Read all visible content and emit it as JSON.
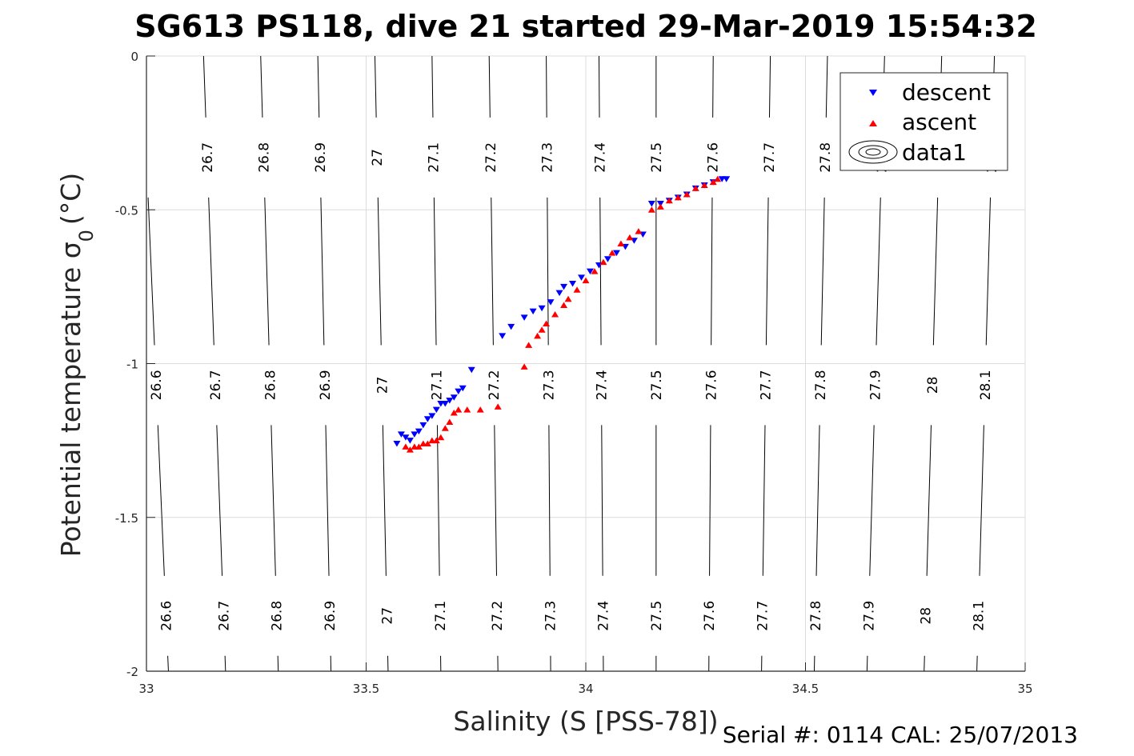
{
  "chart_data": {
    "type": "scatter",
    "title": "SG613 PS118, dive 21 started 29-Mar-2019 15:54:32",
    "xlabel": "Salinity (S [PSS-78])",
    "ylabel": "Potential temperature σ",
    "ylabel_sub": "0",
    "ylabel_unit": "(°C)",
    "xlim": [
      33,
      35
    ],
    "ylim": [
      -2,
      0
    ],
    "grid": true,
    "xticks": [
      33,
      33.5,
      34,
      34.5,
      35
    ],
    "xtick_labels": [
      "33",
      "33.5",
      "34",
      "34.5",
      "35"
    ],
    "yticks": [
      0,
      -0.5,
      -1,
      -1.5,
      -2
    ],
    "ytick_labels": [
      "0",
      "-0.5",
      "-1",
      "-1.5",
      "-2"
    ],
    "legend": {
      "position": "top-right",
      "entries": [
        {
          "label": "descent",
          "marker": "triangle-down",
          "color": "#0000ff"
        },
        {
          "label": "ascent",
          "marker": "triangle-up",
          "color": "#ff0000"
        },
        {
          "label": "data1",
          "marker": "contour",
          "color": "#000000"
        }
      ]
    },
    "contours": {
      "levels": [
        26.6,
        26.7,
        26.8,
        26.9,
        27,
        27.1,
        27.2,
        27.3,
        27.4,
        27.5,
        27.6,
        27.7,
        27.8,
        27.9,
        28,
        28.1
      ],
      "labels": [
        "26.6",
        "26.7",
        "26.8",
        "26.9",
        "27",
        "27.1",
        "27.2",
        "27.3",
        "27.4",
        "27.5",
        "27.6",
        "27.7",
        "27.8",
        "27.9",
        "28",
        "28.1"
      ],
      "salinity_at_theta_minus2": [
        33.05,
        33.18,
        33.3,
        33.42,
        33.55,
        33.67,
        33.8,
        33.92,
        34.04,
        34.16,
        34.28,
        34.4,
        34.52,
        34.64,
        34.77,
        34.89
      ],
      "salinity_at_theta_0": [
        32.99,
        33.13,
        33.26,
        33.39,
        33.52,
        33.65,
        33.78,
        33.91,
        34.03,
        34.16,
        34.29,
        34.42,
        34.55,
        34.68,
        34.81,
        34.93
      ],
      "label_rows_theta": [
        -0.33,
        -1.07,
        -1.82
      ]
    },
    "series": [
      {
        "name": "descent",
        "color": "#0000ff",
        "marker": "triangle-down",
        "points": [
          [
            33.57,
            -1.26
          ],
          [
            33.58,
            -1.23
          ],
          [
            33.59,
            -1.24
          ],
          [
            33.6,
            -1.25
          ],
          [
            33.61,
            -1.23
          ],
          [
            33.62,
            -1.22
          ],
          [
            33.63,
            -1.2
          ],
          [
            33.64,
            -1.18
          ],
          [
            33.65,
            -1.17
          ],
          [
            33.66,
            -1.15
          ],
          [
            33.67,
            -1.13
          ],
          [
            33.68,
            -1.13
          ],
          [
            33.69,
            -1.12
          ],
          [
            33.7,
            -1.11
          ],
          [
            33.71,
            -1.09
          ],
          [
            33.72,
            -1.08
          ],
          [
            33.74,
            -1.02
          ],
          [
            33.81,
            -0.91
          ],
          [
            33.83,
            -0.88
          ],
          [
            33.86,
            -0.85
          ],
          [
            33.88,
            -0.83
          ],
          [
            33.9,
            -0.82
          ],
          [
            33.92,
            -0.8
          ],
          [
            33.94,
            -0.77
          ],
          [
            33.95,
            -0.75
          ],
          [
            33.97,
            -0.74
          ],
          [
            33.99,
            -0.72
          ],
          [
            34.01,
            -0.7
          ],
          [
            34.03,
            -0.68
          ],
          [
            34.05,
            -0.66
          ],
          [
            34.07,
            -0.64
          ],
          [
            34.09,
            -0.62
          ],
          [
            34.11,
            -0.6
          ],
          [
            34.13,
            -0.58
          ],
          [
            34.15,
            -0.48
          ],
          [
            34.17,
            -0.48
          ],
          [
            34.19,
            -0.47
          ],
          [
            34.21,
            -0.46
          ],
          [
            34.23,
            -0.45
          ],
          [
            34.25,
            -0.43
          ],
          [
            34.27,
            -0.42
          ],
          [
            34.29,
            -0.41
          ],
          [
            34.31,
            -0.4
          ],
          [
            34.32,
            -0.4
          ]
        ]
      },
      {
        "name": "ascent",
        "color": "#ff0000",
        "marker": "triangle-up",
        "points": [
          [
            33.59,
            -1.27
          ],
          [
            33.6,
            -1.28
          ],
          [
            33.61,
            -1.27
          ],
          [
            33.62,
            -1.27
          ],
          [
            33.63,
            -1.26
          ],
          [
            33.64,
            -1.26
          ],
          [
            33.65,
            -1.25
          ],
          [
            33.66,
            -1.25
          ],
          [
            33.67,
            -1.24
          ],
          [
            33.68,
            -1.21
          ],
          [
            33.69,
            -1.19
          ],
          [
            33.7,
            -1.16
          ],
          [
            33.71,
            -1.15
          ],
          [
            33.73,
            -1.15
          ],
          [
            33.76,
            -1.15
          ],
          [
            33.8,
            -1.14
          ],
          [
            33.86,
            -1.01
          ],
          [
            33.87,
            -0.94
          ],
          [
            33.89,
            -0.91
          ],
          [
            33.9,
            -0.89
          ],
          [
            33.91,
            -0.87
          ],
          [
            33.93,
            -0.84
          ],
          [
            33.95,
            -0.81
          ],
          [
            33.96,
            -0.79
          ],
          [
            33.98,
            -0.76
          ],
          [
            34.0,
            -0.73
          ],
          [
            34.02,
            -0.7
          ],
          [
            34.04,
            -0.67
          ],
          [
            34.06,
            -0.64
          ],
          [
            34.08,
            -0.61
          ],
          [
            34.1,
            -0.59
          ],
          [
            34.12,
            -0.57
          ],
          [
            34.15,
            -0.5
          ],
          [
            34.17,
            -0.49
          ],
          [
            34.19,
            -0.47
          ],
          [
            34.21,
            -0.46
          ],
          [
            34.23,
            -0.45
          ],
          [
            34.25,
            -0.43
          ],
          [
            34.27,
            -0.42
          ],
          [
            34.29,
            -0.41
          ],
          [
            34.3,
            -0.4
          ]
        ]
      }
    ]
  },
  "footer": {
    "serial_text": "Serial #: 0114  CAL: 25/07/2013"
  }
}
